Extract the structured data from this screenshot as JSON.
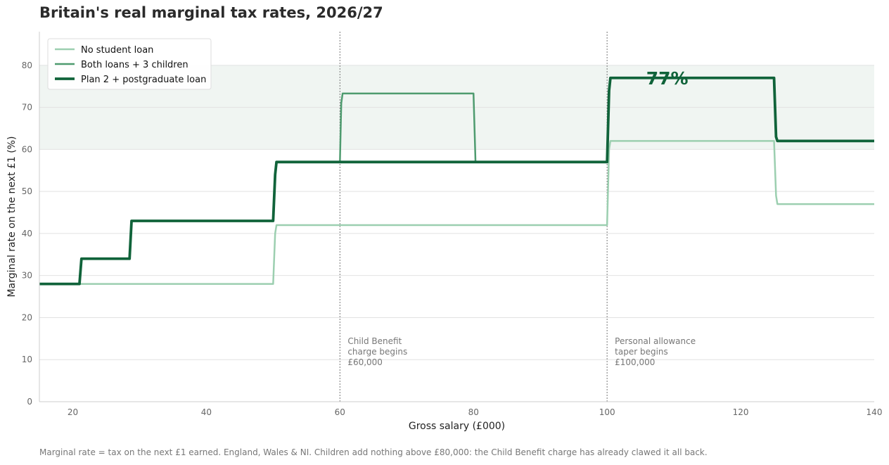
{
  "chart_data": {
    "type": "line",
    "title": "Britain's real marginal tax rates, 2026/27",
    "xlabel": "Gross salary (£000)",
    "ylabel": "Marginal rate on the next £1 (%)",
    "xlim": [
      15,
      140
    ],
    "ylim": [
      0,
      88
    ],
    "xticks": [
      20,
      40,
      60,
      80,
      100,
      120,
      140
    ],
    "yticks": [
      0,
      10,
      20,
      30,
      40,
      50,
      60,
      70,
      80
    ],
    "grid": "horizontal",
    "legend_position": "top-left",
    "highlight_band": {
      "y0": 60,
      "y1": 80,
      "color": "#f0f5f2"
    },
    "series": [
      {
        "name": "No student loan",
        "color": "#9ccfb0",
        "x": [
          15,
          50,
          50.3,
          50.5,
          100,
          100.3,
          100.5,
          125,
          125.3,
          125.5,
          140
        ],
        "y": [
          28,
          28,
          40,
          42,
          42,
          60,
          62,
          62,
          49,
          47,
          47
        ]
      },
      {
        "name": "Both loans + 3 children",
        "color": "#4e9b6f",
        "x": [
          15,
          21,
          21.3,
          28.5,
          28.8,
          50,
          50.3,
          50.5,
          60,
          60.2,
          60.4,
          80,
          80.3,
          100,
          100.3,
          100.5,
          125,
          125.3,
          125.5,
          140
        ],
        "y": [
          28,
          28,
          34,
          34,
          43,
          43,
          54,
          57,
          57,
          71,
          73.3,
          73.3,
          57,
          57,
          74,
          77,
          77,
          63,
          62,
          62
        ]
      },
      {
        "name": "Plan 2 + postgraduate loan",
        "color": "#10633a",
        "x": [
          15,
          21,
          21.3,
          28.5,
          28.8,
          50,
          50.3,
          50.5,
          100,
          100.3,
          100.5,
          125,
          125.3,
          125.5,
          140
        ],
        "y": [
          28,
          28,
          34,
          34,
          43,
          43,
          54,
          57,
          57,
          74,
          77,
          77,
          63,
          62,
          62
        ]
      }
    ],
    "reference_lines": [
      {
        "x": 60,
        "label": [
          "Child Benefit",
          "charge begins",
          "£60,000"
        ]
      },
      {
        "x": 100,
        "label": [
          "Personal allowance",
          "taper begins",
          "£100,000"
        ]
      }
    ],
    "annotations": [
      {
        "text": "77%",
        "x": 109,
        "y": 77,
        "color": "#10633a"
      }
    ]
  },
  "footnote": "Marginal rate = tax on the next £1 earned. England, Wales & NI. Children add nothing above £80,000: the Child Benefit charge has already clawed it all back."
}
